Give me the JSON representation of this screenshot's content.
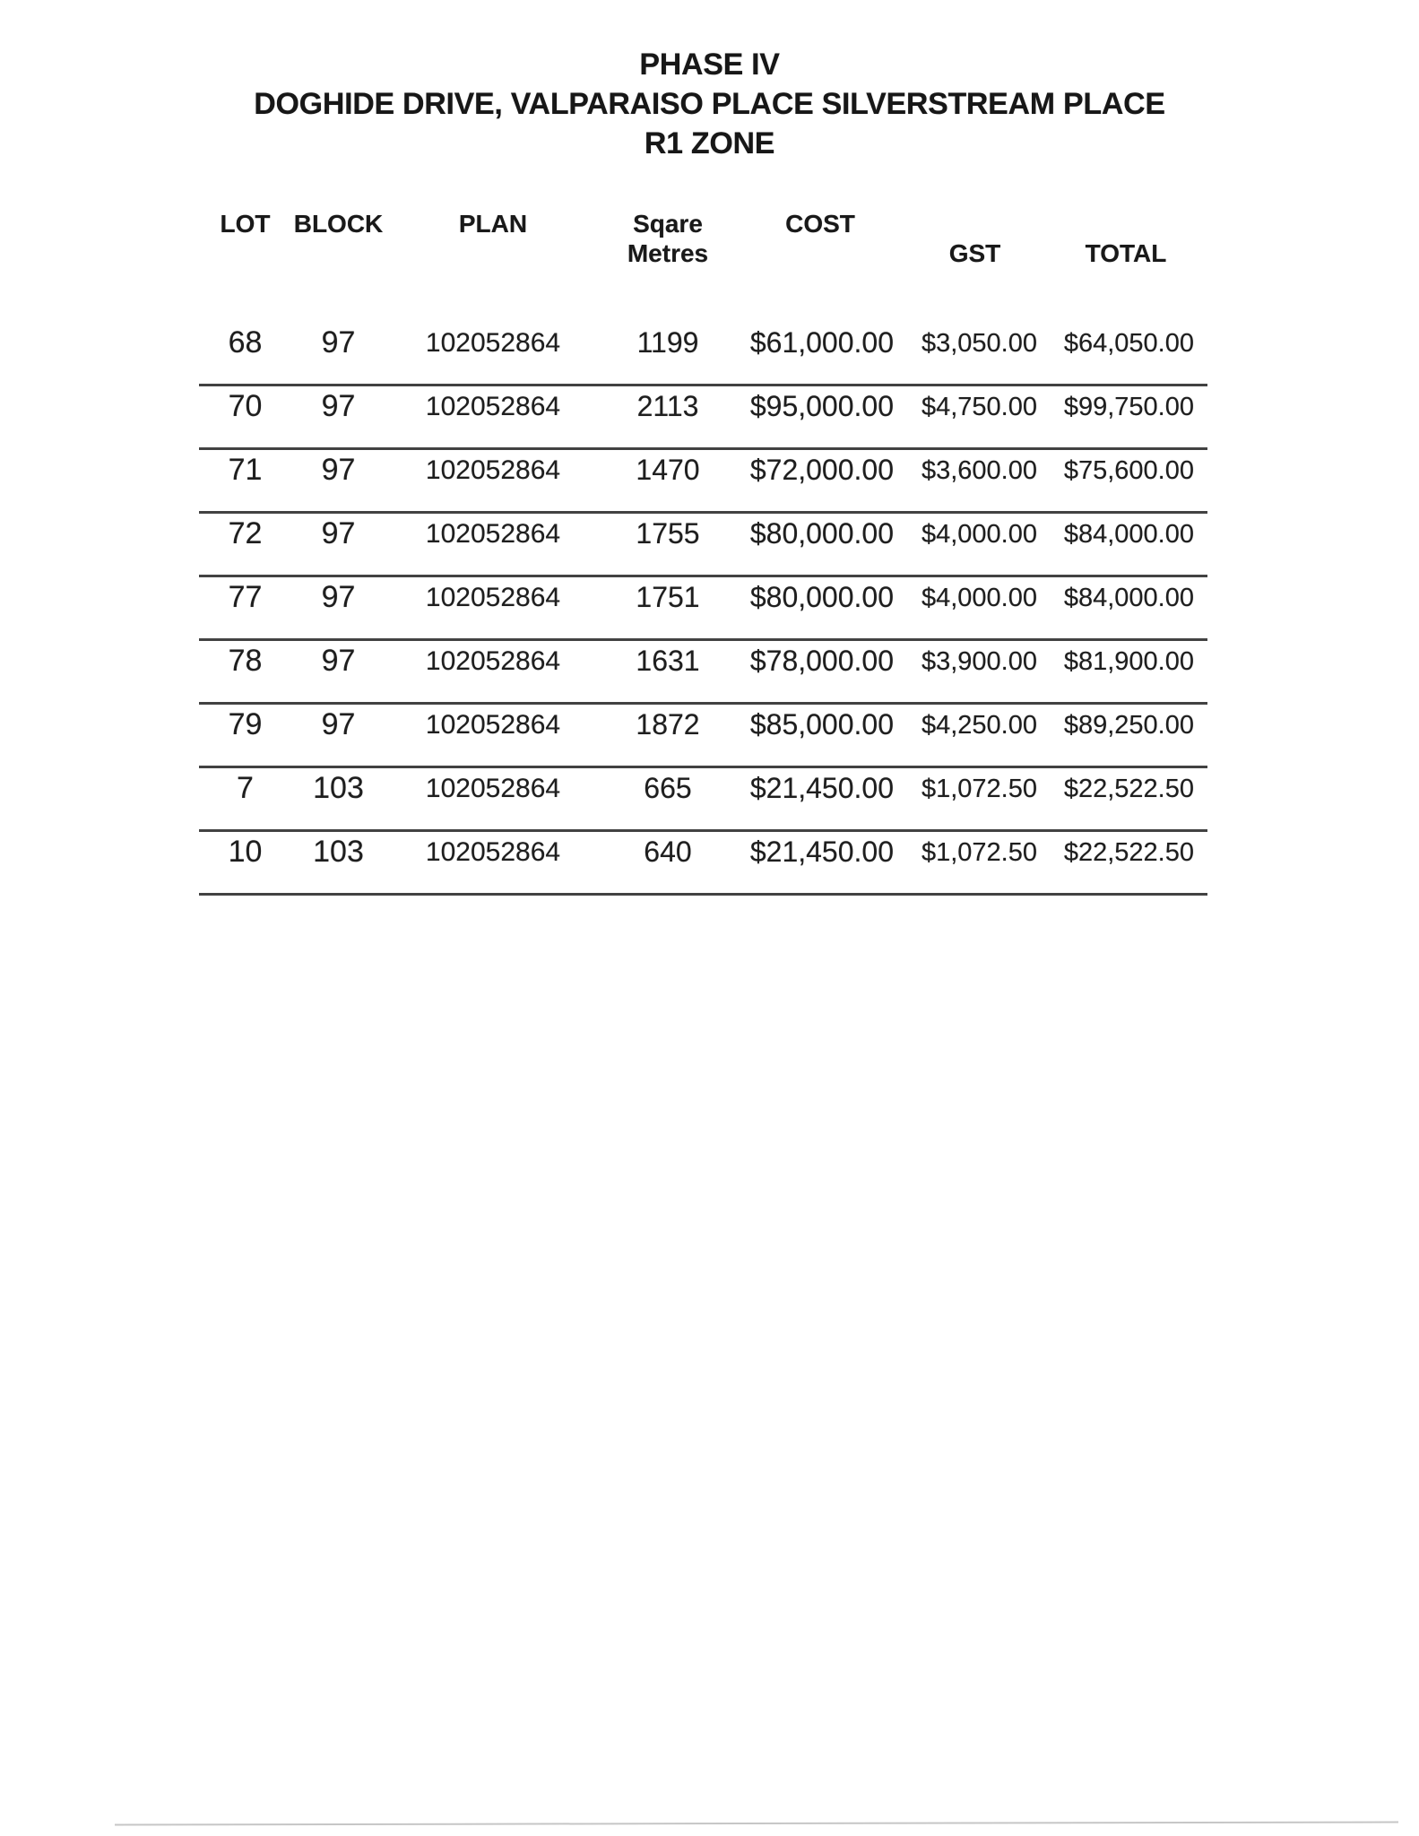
{
  "title": {
    "line1": "PHASE IV",
    "line2": "DOGHIDE DRIVE, VALPARAISO PLACE SILVERSTREAM PLACE",
    "line3": "R1 ZONE"
  },
  "table": {
    "headers": {
      "lot": "LOT",
      "block": "BLOCK",
      "plan": "PLAN",
      "sqm_line1": "Sqare",
      "sqm_line2": "Metres",
      "cost": "COST",
      "gst": "GST",
      "total": "TOTAL"
    },
    "rows": [
      {
        "lot": "68",
        "block": "97",
        "plan": "102052864",
        "sqm": "1199",
        "cost": "$61,000.00",
        "gst": "$3,050.00",
        "total": "$64,050.00"
      },
      {
        "lot": "70",
        "block": "97",
        "plan": "102052864",
        "sqm": "2113",
        "cost": "$95,000.00",
        "gst": "$4,750.00",
        "total": "$99,750.00"
      },
      {
        "lot": "71",
        "block": "97",
        "plan": "102052864",
        "sqm": "1470",
        "cost": "$72,000.00",
        "gst": "$3,600.00",
        "total": "$75,600.00"
      },
      {
        "lot": "72",
        "block": "97",
        "plan": "102052864",
        "sqm": "1755",
        "cost": "$80,000.00",
        "gst": "$4,000.00",
        "total": "$84,000.00"
      },
      {
        "lot": "77",
        "block": "97",
        "plan": "102052864",
        "sqm": "1751",
        "cost": "$80,000.00",
        "gst": "$4,000.00",
        "total": "$84,000.00"
      },
      {
        "lot": "78",
        "block": "97",
        "plan": "102052864",
        "sqm": "1631",
        "cost": "$78,000.00",
        "gst": "$3,900.00",
        "total": "$81,900.00"
      },
      {
        "lot": "79",
        "block": "97",
        "plan": "102052864",
        "sqm": "1872",
        "cost": "$85,000.00",
        "gst": "$4,250.00",
        "total": "$89,250.00"
      },
      {
        "lot": "7",
        "block": "103",
        "plan": "102052864",
        "sqm": "665",
        "cost": "$21,450.00",
        "gst": "$1,072.50",
        "total": "$22,522.50"
      },
      {
        "lot": "10",
        "block": "103",
        "plan": "102052864",
        "sqm": "640",
        "cost": "$21,450.00",
        "gst": "$1,072.50",
        "total": "$22,522.50"
      }
    ]
  }
}
